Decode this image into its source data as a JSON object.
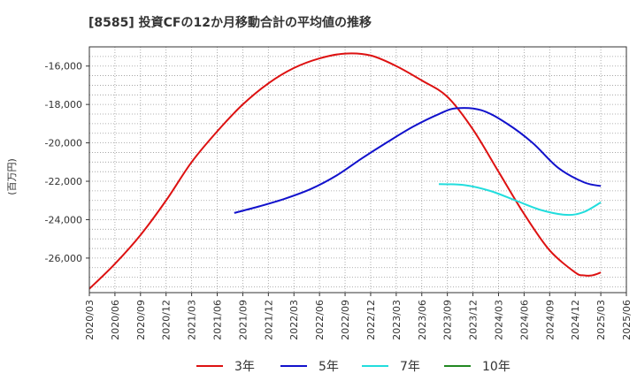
{
  "chart_data": {
    "type": "line",
    "title": "[8585]  投資CFの12か月移動合計の平均値の推移",
    "ylabel": "(百万円)",
    "xlabel": "",
    "xlim": [
      "2020-03",
      "2025-06"
    ],
    "ylim": [
      -27800,
      -15000
    ],
    "yticks": [
      -16000,
      -18000,
      -20000,
      -22000,
      -24000,
      -26000
    ],
    "ytick_labels": [
      "-16,000",
      "-18,000",
      "-20,000",
      "-22,000",
      "-24,000",
      "-26,000"
    ],
    "xticks": [
      "2020-03",
      "2020-06",
      "2020-09",
      "2020-12",
      "2021-03",
      "2021-06",
      "2021-09",
      "2021-12",
      "2022-03",
      "2022-06",
      "2022-09",
      "2022-12",
      "2023-03",
      "2023-06",
      "2023-09",
      "2023-12",
      "2024-03",
      "2024-06",
      "2024-09",
      "2024-12",
      "2025-03",
      "2025-06"
    ],
    "xtick_labels": [
      "2020/03",
      "2020/06",
      "2020/09",
      "2020/12",
      "2021/03",
      "2021/06",
      "2021/09",
      "2021/12",
      "2022/03",
      "2022/06",
      "2022/09",
      "2022/12",
      "2023/03",
      "2023/06",
      "2023/09",
      "2023/12",
      "2024/03",
      "2024/06",
      "2024/09",
      "2024/12",
      "2025/03",
      "2025/06"
    ],
    "grid": true,
    "legend_position": "bottom",
    "series": [
      {
        "name": "3年",
        "color": "#dd1111",
        "points": [
          [
            "2020-03",
            -27600
          ],
          [
            "2020-06",
            -26300
          ],
          [
            "2020-09",
            -24800
          ],
          [
            "2020-12",
            -23000
          ],
          [
            "2021-03",
            -21000
          ],
          [
            "2021-06",
            -19400
          ],
          [
            "2021-09",
            -18000
          ],
          [
            "2021-12",
            -16900
          ],
          [
            "2022-03",
            -16100
          ],
          [
            "2022-06",
            -15600
          ],
          [
            "2022-09",
            -15350
          ],
          [
            "2022-12",
            -15450
          ],
          [
            "2023-03",
            -16000
          ],
          [
            "2023-06",
            -16750
          ],
          [
            "2023-09",
            -17600
          ],
          [
            "2023-12",
            -19300
          ],
          [
            "2024-03",
            -21500
          ],
          [
            "2024-06",
            -23700
          ],
          [
            "2024-09",
            -25600
          ],
          [
            "2024-12",
            -26750
          ],
          [
            "2025-01",
            -26900
          ],
          [
            "2025-02",
            -26900
          ],
          [
            "2025-03",
            -26750
          ]
        ]
      },
      {
        "name": "5年",
        "color": "#1111cc",
        "points": [
          [
            "2021-08",
            -23650
          ],
          [
            "2021-11",
            -23300
          ],
          [
            "2022-02",
            -22900
          ],
          [
            "2022-05",
            -22400
          ],
          [
            "2022-08",
            -21700
          ],
          [
            "2022-11",
            -20800
          ],
          [
            "2023-02",
            -19950
          ],
          [
            "2023-05",
            -19150
          ],
          [
            "2023-08",
            -18500
          ],
          [
            "2023-10",
            -18200
          ],
          [
            "2024-01",
            -18300
          ],
          [
            "2024-04",
            -19000
          ],
          [
            "2024-07",
            -20000
          ],
          [
            "2024-10",
            -21300
          ],
          [
            "2025-01",
            -22050
          ],
          [
            "2025-03",
            -22250
          ]
        ]
      },
      {
        "name": "7年",
        "color": "#22dddd",
        "points": [
          [
            "2023-08",
            -22150
          ],
          [
            "2023-11",
            -22200
          ],
          [
            "2024-02",
            -22500
          ],
          [
            "2024-05",
            -23000
          ],
          [
            "2024-08",
            -23500
          ],
          [
            "2024-11",
            -23750
          ],
          [
            "2025-01",
            -23600
          ],
          [
            "2025-03",
            -23100
          ]
        ]
      },
      {
        "name": "10年",
        "color": "#228822",
        "points": []
      }
    ]
  }
}
